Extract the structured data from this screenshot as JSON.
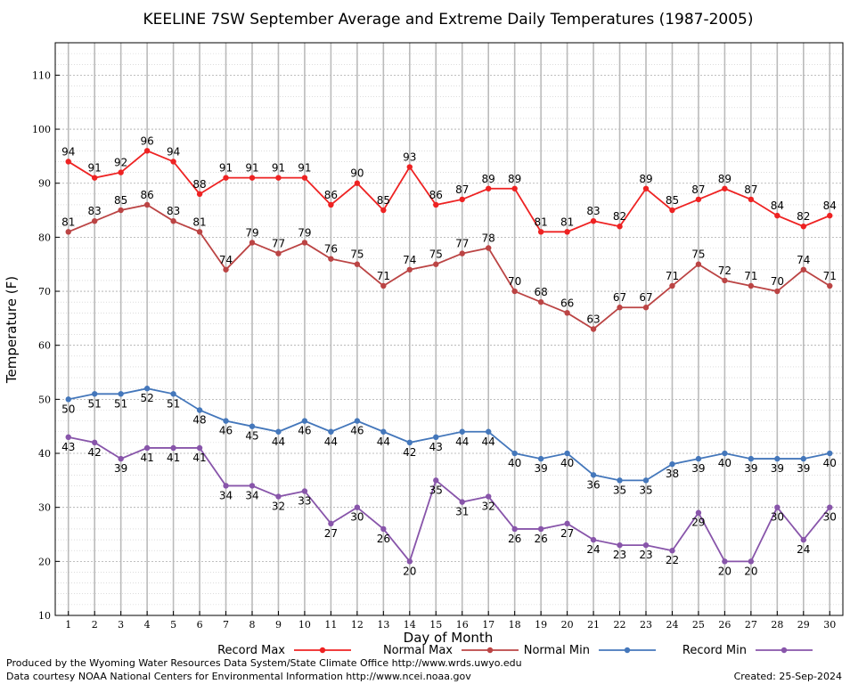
{
  "chart_data": {
    "type": "line",
    "title": "KEELINE 7SW September Average and Extreme Daily Temperatures (1987-2005)",
    "xlabel": "Day of Month",
    "ylabel": "Temperature (F)",
    "ylim": [
      10,
      116
    ],
    "xlim": [
      0.5,
      30.5
    ],
    "yticks": [
      10,
      20,
      30,
      40,
      50,
      60,
      70,
      80,
      90,
      100,
      110
    ],
    "x": [
      1,
      2,
      3,
      4,
      5,
      6,
      7,
      8,
      9,
      10,
      11,
      12,
      13,
      14,
      15,
      16,
      17,
      18,
      19,
      20,
      21,
      22,
      23,
      24,
      25,
      26,
      27,
      28,
      29,
      30
    ],
    "grid": true,
    "legend_position": "bottom",
    "series": [
      {
        "name": "Record Max",
        "color": "#ee2222",
        "label_pos": "above",
        "values": [
          94,
          91,
          92,
          96,
          94,
          88,
          91,
          91,
          91,
          91,
          86,
          90,
          85,
          93,
          86,
          87,
          89,
          89,
          81,
          81,
          83,
          82,
          89,
          85,
          87,
          89,
          87,
          84,
          82,
          84
        ]
      },
      {
        "name": "Normal Max",
        "color": "#bb4444",
        "label_pos": "above",
        "values": [
          81,
          83,
          85,
          86,
          83,
          81,
          74,
          79,
          77,
          79,
          76,
          75,
          71,
          74,
          75,
          77,
          78,
          70,
          68,
          66,
          63,
          67,
          67,
          71,
          75,
          72,
          71,
          70,
          74,
          71
        ]
      },
      {
        "name": "Normal Min",
        "color": "#4477bb",
        "label_pos": "below",
        "values": [
          50,
          51,
          51,
          52,
          51,
          48,
          46,
          45,
          44,
          46,
          44,
          46,
          44,
          42,
          43,
          44,
          44,
          40,
          39,
          40,
          36,
          35,
          35,
          38,
          39,
          40,
          39,
          39,
          39,
          40
        ]
      },
      {
        "name": "Record Min",
        "color": "#8855aa",
        "label_pos": "below",
        "values": [
          43,
          42,
          39,
          41,
          41,
          41,
          34,
          34,
          32,
          33,
          27,
          30,
          26,
          20,
          35,
          31,
          32,
          26,
          26,
          27,
          24,
          23,
          23,
          22,
          29,
          20,
          20,
          30,
          24,
          30
        ]
      }
    ]
  },
  "footer": {
    "line1": "Produced by the Wyoming Water Resources Data System/State Climate Office http://www.wrds.uwyo.edu",
    "line2": "Data courtesy NOAA National Centers for Environmental Information http://www.ncei.noaa.gov",
    "created": "Created:  25-Sep-2024"
  }
}
